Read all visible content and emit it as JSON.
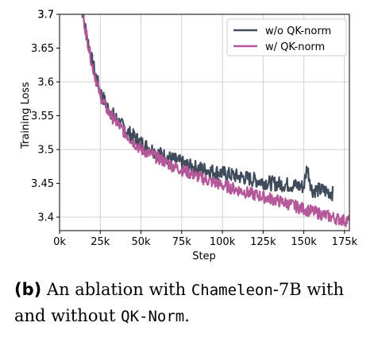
{
  "chart_data": {
    "type": "line",
    "title": "",
    "xlabel": "Step",
    "ylabel": "Training Loss",
    "xlim": [
      0,
      178000
    ],
    "ylim": [
      3.38,
      3.7
    ],
    "x_ticks": [
      0,
      25000,
      50000,
      75000,
      100000,
      125000,
      150000,
      175000
    ],
    "x_tick_labels": [
      "0k",
      "25k",
      "50k",
      "75k",
      "100k",
      "125k",
      "150k",
      "175k"
    ],
    "y_ticks": [
      3.4,
      3.5,
      3.6,
      3.7
    ],
    "y_tick_labels_visible": [
      "3.4",
      "3.45",
      "3.5",
      "3.55",
      "3.6",
      "3.65",
      "3.7",
      "3.7"
    ],
    "y_tick_values_visible": [
      3.4,
      3.45,
      3.5,
      3.55,
      3.6,
      3.65,
      3.7,
      3.74
    ],
    "grid": true,
    "legend_position": "top-right",
    "series": [
      {
        "name": "w/o QK-norm",
        "color": "#3f4a5a",
        "x": [
          12000,
          15000,
          20000,
          25000,
          30000,
          35000,
          40000,
          45000,
          50000,
          60000,
          70000,
          80000,
          90000,
          100000,
          110000,
          120000,
          130000,
          140000,
          150000,
          152000,
          155000,
          160000,
          165000,
          168000
        ],
        "y": [
          3.74,
          3.69,
          3.63,
          3.585,
          3.56,
          3.545,
          3.53,
          3.52,
          3.51,
          3.495,
          3.485,
          3.475,
          3.47,
          3.465,
          3.46,
          3.455,
          3.45,
          3.448,
          3.445,
          3.475,
          3.44,
          3.44,
          3.438,
          3.435
        ]
      },
      {
        "name": "w/ QK-norm",
        "color": "#b5589a",
        "x": [
          12000,
          15000,
          20000,
          25000,
          30000,
          35000,
          40000,
          45000,
          50000,
          60000,
          70000,
          80000,
          90000,
          100000,
          110000,
          120000,
          130000,
          140000,
          150000,
          160000,
          170000,
          175000,
          178000
        ],
        "y": [
          3.74,
          3.69,
          3.625,
          3.58,
          3.555,
          3.54,
          3.525,
          3.512,
          3.5,
          3.488,
          3.475,
          3.465,
          3.455,
          3.447,
          3.44,
          3.433,
          3.427,
          3.42,
          3.412,
          3.405,
          3.398,
          3.395,
          3.395
        ]
      }
    ]
  },
  "caption": {
    "label": "(b)",
    "text_1": "An ablation with",
    "model": "Chameleon",
    "text_2": "-7B",
    "text_3": "with and without",
    "method": "QK-Norm",
    "text_4": "."
  }
}
